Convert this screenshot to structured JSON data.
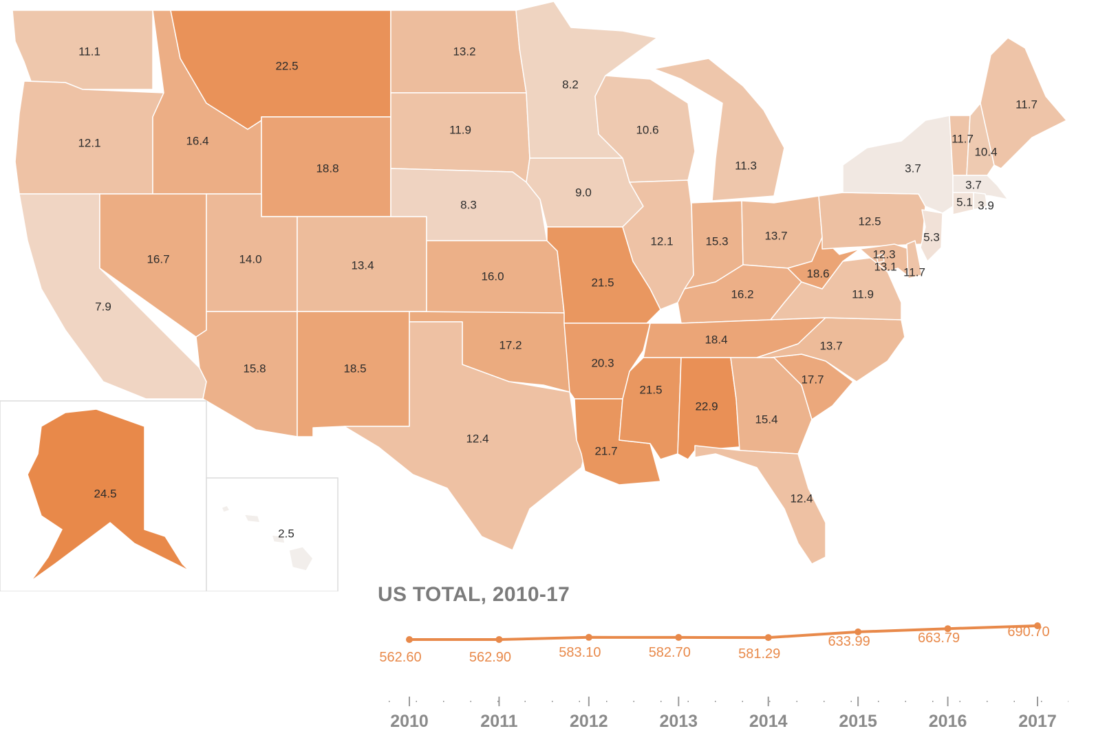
{
  "colors": {
    "scale_low": "#f2eeeb",
    "scale_high": "#e8894a",
    "line": "#e8894a",
    "border": "#ffffff",
    "title": "#7b7b7b"
  },
  "scale": {
    "min": 2.5,
    "max": 24.5
  },
  "states": [
    {
      "code": "WA",
      "value": "11.1"
    },
    {
      "code": "OR",
      "value": "12.1"
    },
    {
      "code": "CA",
      "value": "7.9"
    },
    {
      "code": "ID",
      "value": "16.4"
    },
    {
      "code": "NV",
      "value": "16.7"
    },
    {
      "code": "MT",
      "value": "22.5"
    },
    {
      "code": "WY",
      "value": "18.8"
    },
    {
      "code": "UT",
      "value": "14.0"
    },
    {
      "code": "CO",
      "value": "13.4"
    },
    {
      "code": "AZ",
      "value": "15.8"
    },
    {
      "code": "NM",
      "value": "18.5"
    },
    {
      "code": "ND",
      "value": "13.2"
    },
    {
      "code": "SD",
      "value": "11.9"
    },
    {
      "code": "NE",
      "value": "8.3"
    },
    {
      "code": "KS",
      "value": "16.0"
    },
    {
      "code": "OK",
      "value": "17.2"
    },
    {
      "code": "TX",
      "value": "12.4"
    },
    {
      "code": "MN",
      "value": "8.2"
    },
    {
      "code": "IA",
      "value": "9.0"
    },
    {
      "code": "MO",
      "value": "21.5"
    },
    {
      "code": "AR",
      "value": "20.3"
    },
    {
      "code": "LA",
      "value": "21.7"
    },
    {
      "code": "WI",
      "value": "10.6"
    },
    {
      "code": "IL",
      "value": "12.1"
    },
    {
      "code": "MI",
      "value": "11.3"
    },
    {
      "code": "IN",
      "value": "15.3"
    },
    {
      "code": "OH",
      "value": "13.7"
    },
    {
      "code": "KY",
      "value": "16.2"
    },
    {
      "code": "TN",
      "value": "18.4"
    },
    {
      "code": "MS",
      "value": "21.5"
    },
    {
      "code": "AL",
      "value": "22.9"
    },
    {
      "code": "GA",
      "value": "15.4"
    },
    {
      "code": "FL",
      "value": "12.4"
    },
    {
      "code": "SC",
      "value": "17.7"
    },
    {
      "code": "NC",
      "value": "13.7"
    },
    {
      "code": "VA",
      "value": "11.9"
    },
    {
      "code": "WV",
      "value": "18.6"
    },
    {
      "code": "PA",
      "value": "12.5"
    },
    {
      "code": "NY",
      "value": "3.7"
    },
    {
      "code": "VT",
      "value": "11.7"
    },
    {
      "code": "NH",
      "value": "10.4"
    },
    {
      "code": "ME",
      "value": "11.7"
    },
    {
      "code": "MA",
      "value": "3.7"
    },
    {
      "code": "CT",
      "value": "5.1"
    },
    {
      "code": "RI",
      "value": "3.9"
    },
    {
      "code": "NJ",
      "value": "5.3"
    },
    {
      "code": "DE",
      "value": "11.7"
    },
    {
      "code": "MD",
      "value": "13.1"
    },
    {
      "code": "DC",
      "value": "12.3"
    },
    {
      "code": "AK",
      "value": "24.5"
    },
    {
      "code": "HI",
      "value": "2.5"
    }
  ],
  "total": {
    "title": "US TOTAL, 2010-17",
    "chart_data": {
      "type": "line",
      "x": [
        "2010",
        "2011",
        "2012",
        "2013",
        "2014",
        "2015",
        "2016",
        "2017"
      ],
      "series": [
        {
          "values": [
            562.6,
            562.9,
            583.1,
            582.7,
            581.29,
            633.99,
            663.79,
            690.7
          ]
        }
      ],
      "value_labels": [
        "562.60",
        "562.90",
        "583.10",
        "582.70",
        "581.29",
        "633.99",
        "663.79",
        "690.70"
      ],
      "xlabel": "",
      "ylabel": "",
      "grid": false,
      "legend": "none"
    }
  }
}
